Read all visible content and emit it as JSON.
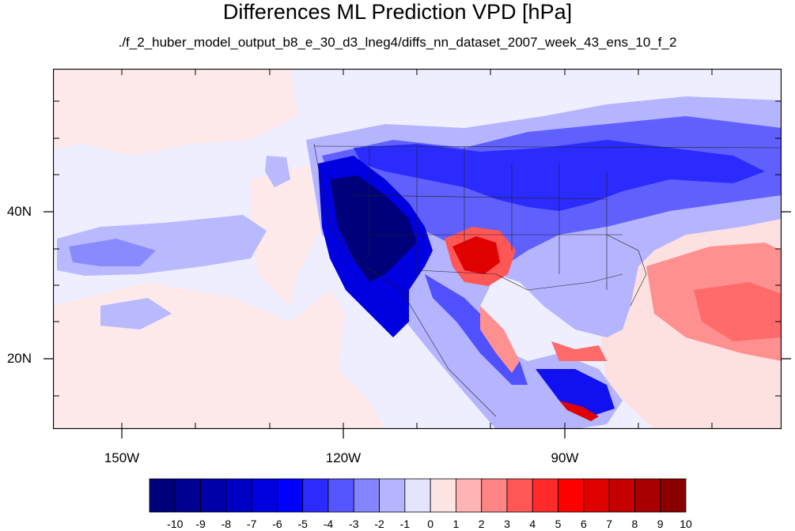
{
  "title": "Differences ML Prediction VPD [hPa]",
  "subtitle": "./f_2_huber_model_output_b8_e_30_d3_lneg4/diffs_nn_dataset_2007_week_43_ens_10_f_2",
  "x_ticks": [
    "150W",
    "120W",
    "90W"
  ],
  "y_ticks": [
    "40N",
    "20N"
  ],
  "colorbar": {
    "labels": [
      "-10",
      "-9",
      "-8",
      "-7",
      "-6",
      "-5",
      "-4",
      "-3",
      "-2",
      "-1",
      "0",
      "1",
      "2",
      "3",
      "4",
      "5",
      "6",
      "7",
      "8",
      "9",
      "10"
    ],
    "colors": [
      "#00007a",
      "#000090",
      "#0000a8",
      "#0000c4",
      "#0000e0",
      "#0000ff",
      "#2b2bff",
      "#5656ff",
      "#8484ff",
      "#b4b4ff",
      "#e4e4ff",
      "#ffe4e4",
      "#ffb4b4",
      "#ff8484",
      "#ff5656",
      "#ff2b2b",
      "#ff0000",
      "#e00000",
      "#c40000",
      "#a80000",
      "#8a0000"
    ]
  },
  "colors": {
    "ocean_background": "#f1eeff",
    "east_pacific_pink": "#fdeaea",
    "strong_negative": "#00007a",
    "strong_positive": "#e00000"
  }
}
